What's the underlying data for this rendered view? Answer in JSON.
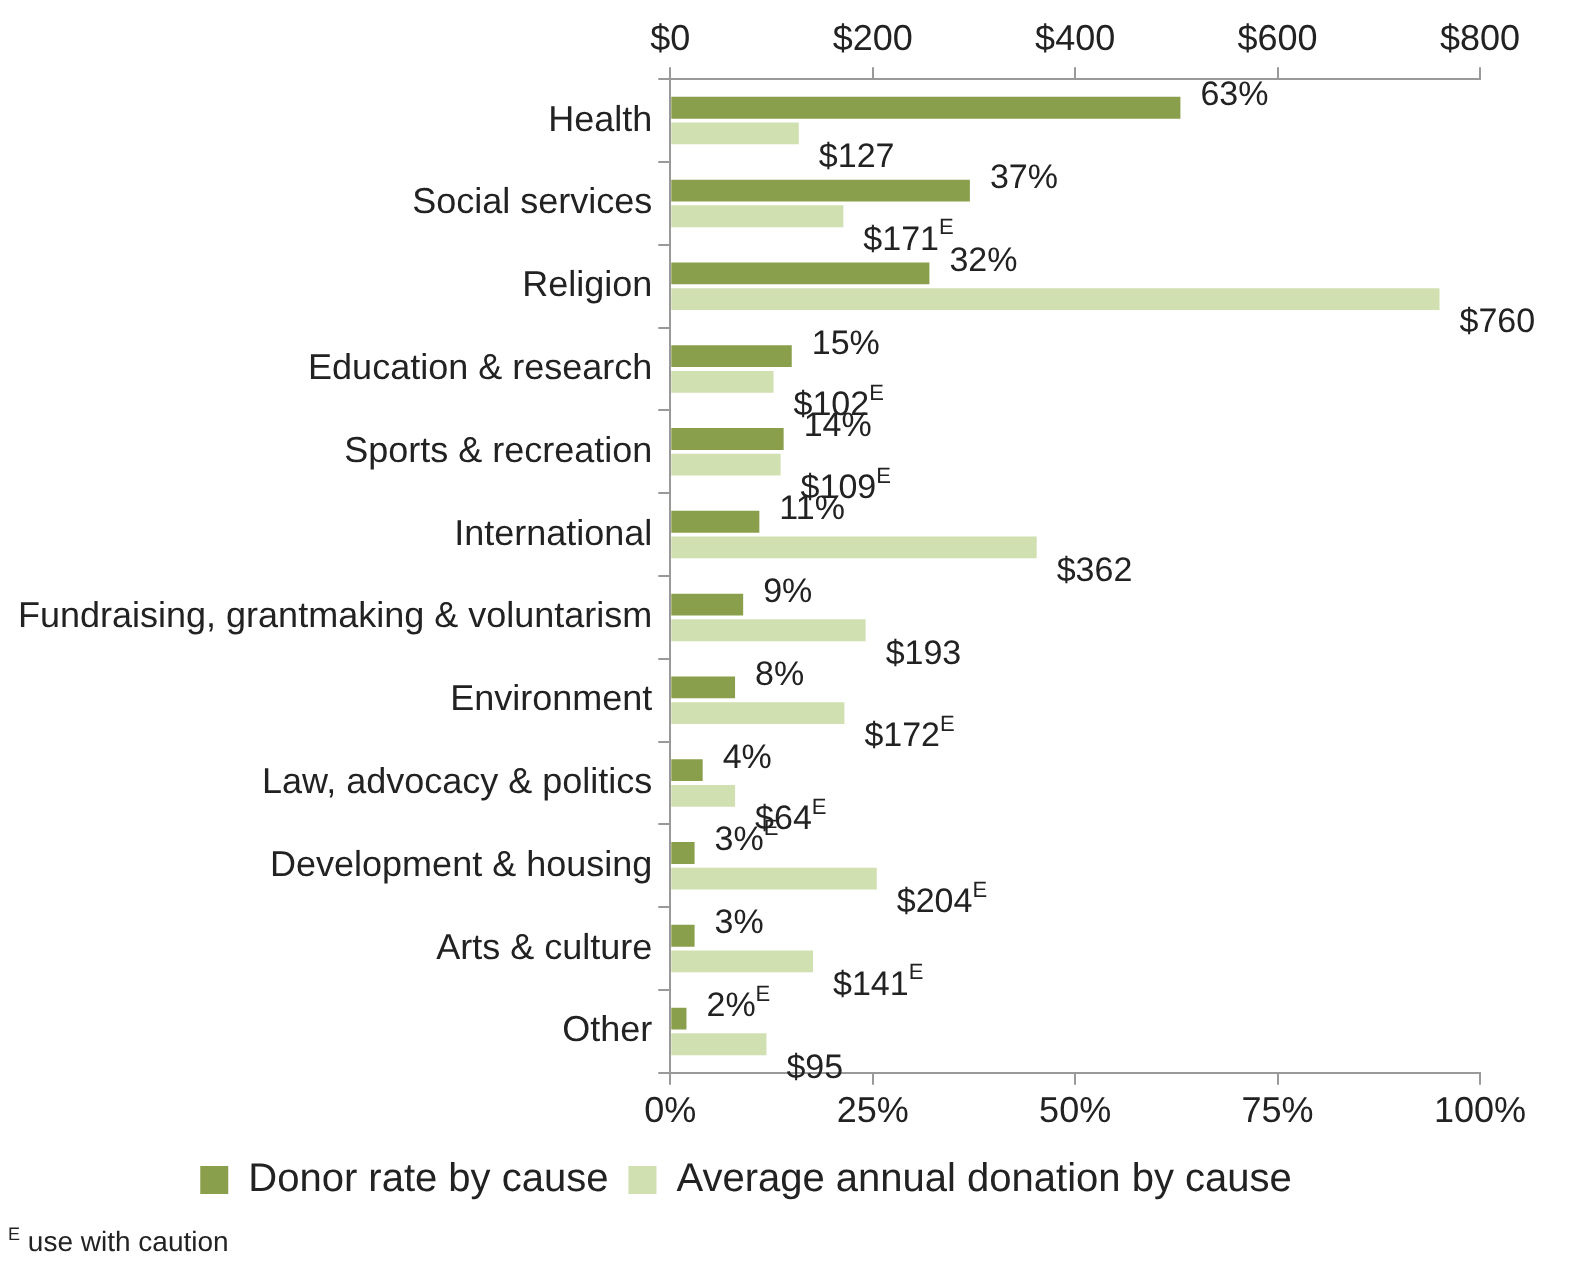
{
  "chart_data": {
    "type": "bar",
    "orientation": "horizontal",
    "categories": [
      "Health",
      "Social services",
      "Religion",
      "Education & research",
      "Sports & recreation",
      "International",
      "Fundraising, grantmaking & voluntarism",
      "Environment",
      "Law, advocacy & politics",
      "Development & housing",
      "Arts & culture",
      "Other"
    ],
    "series": [
      {
        "name": "Donor rate by cause",
        "color": "#8a9f4b",
        "values": [
          63,
          37,
          32,
          15,
          14,
          11,
          9,
          8,
          4,
          3,
          3,
          2
        ],
        "value_labels": [
          "63%",
          "37%",
          "32%",
          "15%",
          "14%",
          "11%",
          "9%",
          "8%",
          "4%",
          "3%$^{E}$",
          "3%",
          "2%$^{E}$"
        ]
      },
      {
        "name": "Average annual donation by cause",
        "color": "#d0e0b0",
        "axis": "x2",
        "values": [
          127,
          171,
          760,
          102,
          109,
          362,
          193,
          172,
          64,
          204,
          141,
          95
        ],
        "value_labels": [
          "$127",
          "$171$^{E}$",
          "$760",
          "$102$^{E}$",
          "$109$^{E}$",
          "$362",
          "$193",
          "$172$^{E}$",
          "$64$^{E}$",
          "$204$^{E}$",
          "$141$^{E}$",
          "$95"
        ]
      }
    ],
    "xlim": [
      0,
      100
    ],
    "xticks": [
      {
        "value": 0,
        "label": "0%"
      },
      {
        "value": 25,
        "label": "25%"
      },
      {
        "value": 50,
        "label": "50%"
      },
      {
        "value": 75,
        "label": "75%"
      },
      {
        "value": 100,
        "label": "100%"
      }
    ],
    "x2lim": [
      0,
      800
    ],
    "x2ticks": [
      {
        "value": 0,
        "label": "$0"
      },
      {
        "value": 200,
        "label": "$200"
      },
      {
        "value": 400,
        "label": "$400"
      },
      {
        "value": 600,
        "label": "$600"
      },
      {
        "value": 800,
        "label": "$800"
      }
    ],
    "grid": false,
    "legend": "bottom",
    "annotations": [
      "$^{E}$ use with caution"
    ]
  }
}
